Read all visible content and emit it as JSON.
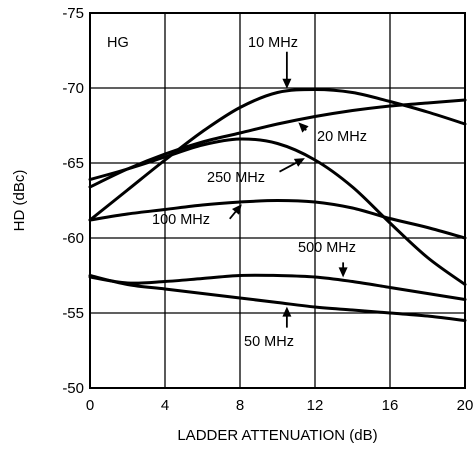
{
  "chart_data": {
    "type": "line",
    "panel_label": "HG",
    "xlabel": "LADDER ATTENUATION (dB)",
    "ylabel": "HD (dBc)",
    "xlim": [
      0,
      20
    ],
    "ylim": [
      -50,
      -75
    ],
    "xticks": [
      0,
      4,
      8,
      12,
      16,
      20
    ],
    "yticks": [
      -75,
      -70,
      -65,
      -60,
      -55,
      -50
    ],
    "xtick_labels": [
      "0",
      "4",
      "8",
      "12",
      "16",
      "20"
    ],
    "ytick_labels": [
      "-75",
      "-70",
      "-65",
      "-60",
      "-55",
      "-50"
    ],
    "grid": true,
    "series": [
      {
        "name": "10 MHz",
        "x": [
          0,
          2,
          4,
          6,
          8,
          10,
          12,
          14,
          16,
          18,
          20
        ],
        "y": [
          -61.2,
          -63.2,
          -65.2,
          -67.1,
          -68.7,
          -69.7,
          -69.9,
          -69.7,
          -69.1,
          -68.4,
          -67.6
        ]
      },
      {
        "name": "20 MHz",
        "x": [
          0,
          2,
          4,
          6,
          8,
          10,
          12,
          14,
          16,
          18,
          20
        ],
        "y": [
          -63.4,
          -64.6,
          -65.6,
          -66.4,
          -67.0,
          -67.6,
          -68.1,
          -68.5,
          -68.8,
          -69.0,
          -69.2
        ]
      },
      {
        "name": "250 MHz",
        "x": [
          0,
          2,
          4,
          6,
          8,
          10,
          12,
          14,
          16,
          18,
          20
        ],
        "y": [
          -63.9,
          -64.6,
          -65.4,
          -66.2,
          -66.6,
          -66.3,
          -65.2,
          -63.4,
          -61.0,
          -58.7,
          -56.9
        ]
      },
      {
        "name": "100 MHz",
        "x": [
          0,
          2,
          4,
          6,
          8,
          10,
          12,
          14,
          16,
          18,
          20
        ],
        "y": [
          -61.2,
          -61.6,
          -61.9,
          -62.2,
          -62.4,
          -62.5,
          -62.4,
          -62.0,
          -61.3,
          -60.7,
          -60.0
        ]
      },
      {
        "name": "500 MHz",
        "x": [
          0,
          2,
          4,
          6,
          8,
          10,
          12,
          14,
          16,
          18,
          20
        ],
        "y": [
          -57.4,
          -57.0,
          -57.1,
          -57.3,
          -57.5,
          -57.5,
          -57.4,
          -57.1,
          -56.7,
          -56.3,
          -55.9
        ]
      },
      {
        "name": "50 MHz",
        "x": [
          0,
          2,
          4,
          6,
          8,
          10,
          12,
          14,
          16,
          18,
          20
        ],
        "y": [
          -57.5,
          -56.9,
          -56.6,
          -56.3,
          -56.0,
          -55.7,
          -55.4,
          -55.2,
          -55.0,
          -54.8,
          -54.5
        ]
      }
    ],
    "annotations": [
      {
        "text": "10 MHz",
        "series": "10 MHz",
        "arrow_x": 10.5
      },
      {
        "text": "20 MHz",
        "series": "20 MHz",
        "arrow_x": 11.0
      },
      {
        "text": "250 MHz",
        "series": "250 MHz",
        "arrow_x": 11.6
      },
      {
        "text": "100 MHz",
        "series": "100 MHz",
        "arrow_x": 8.2
      },
      {
        "text": "500 MHz",
        "series": "500 MHz",
        "arrow_x": 13.5
      },
      {
        "text": "50 MHz",
        "series": "50 MHz",
        "arrow_x": 10.5
      }
    ]
  }
}
